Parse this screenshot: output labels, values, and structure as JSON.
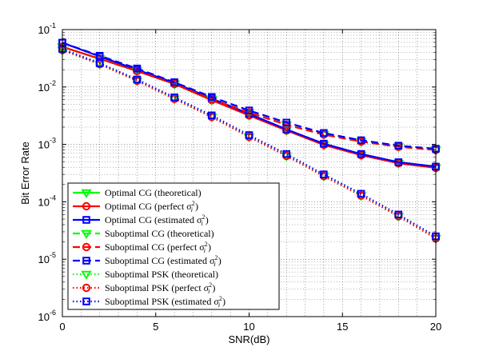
{
  "chart_data": {
    "type": "line",
    "xlabel": "SNR(dB)",
    "ylabel": "Bit Error Rate",
    "xlim": [
      0,
      20
    ],
    "ylim_log10": [
      -6,
      -1
    ],
    "yscale": "log",
    "grid": "major and minor, dotted",
    "legend_placement": "lower-left",
    "xticks": [
      0,
      5,
      10,
      15,
      20
    ],
    "xtick_labels": [
      "0",
      "5",
      "10",
      "15",
      "20"
    ],
    "yticks": [
      {
        "base": "10",
        "exp": "-6",
        "value": 1e-06
      },
      {
        "base": "10",
        "exp": "-5",
        "value": 1e-05
      },
      {
        "base": "10",
        "exp": "-4",
        "value": 0.0001
      },
      {
        "base": "10",
        "exp": "-3",
        "value": 0.001
      },
      {
        "base": "10",
        "exp": "-2",
        "value": 0.01
      },
      {
        "base": "10",
        "exp": "-1",
        "value": 0.1
      }
    ],
    "x": [
      0,
      2,
      4,
      6,
      8,
      10,
      12,
      14,
      16,
      18,
      20
    ],
    "series": [
      {
        "name": "Optimal CG (theoretical)",
        "color": "#00ff00",
        "dash": "solid",
        "marker": "triangle-down",
        "values": [
          0.05,
          0.031,
          0.019,
          0.0113,
          0.0059,
          0.0032,
          0.00175,
          0.00098,
          0.00065,
          0.00047,
          0.00039
        ]
      },
      {
        "name": "Optimal CG (perfect σi²)",
        "color": "#ff0000",
        "dash": "solid",
        "marker": "circle",
        "values": [
          0.05,
          0.031,
          0.019,
          0.0113,
          0.0059,
          0.0032,
          0.00175,
          0.00098,
          0.00065,
          0.00047,
          0.00039
        ]
      },
      {
        "name": "Optimal CG (estimated σi²)",
        "color": "#0000ff",
        "dash": "solid",
        "marker": "square",
        "values": [
          0.059,
          0.034,
          0.02,
          0.0118,
          0.0063,
          0.0034,
          0.00183,
          0.00103,
          0.00068,
          0.00049,
          0.00041
        ]
      },
      {
        "name": "Suboptimal CG (theoretical)",
        "color": "#00ff00",
        "dash": "dashed",
        "marker": "triangle-down",
        "values": [
          0.05,
          0.031,
          0.019,
          0.0113,
          0.0061,
          0.0036,
          0.0022,
          0.00148,
          0.00112,
          0.00091,
          0.0008
        ]
      },
      {
        "name": "Suboptimal CG (perfect σi²)",
        "color": "#ff0000",
        "dash": "dashed",
        "marker": "circle",
        "values": [
          0.05,
          0.031,
          0.019,
          0.0113,
          0.0061,
          0.0036,
          0.0022,
          0.00148,
          0.00112,
          0.00091,
          0.0008
        ]
      },
      {
        "name": "Suboptimal CG (estimated σi²)",
        "color": "#0000ff",
        "dash": "dashed",
        "marker": "square",
        "values": [
          0.059,
          0.035,
          0.021,
          0.0121,
          0.0067,
          0.0039,
          0.0024,
          0.00158,
          0.00118,
          0.00095,
          0.00084
        ]
      },
      {
        "name": "Suboptimal PSK (theoretical)",
        "color": "#00ff00",
        "dash": "dotted",
        "marker": "triangle-down",
        "values": [
          0.044,
          0.025,
          0.0128,
          0.0062,
          0.003,
          0.00135,
          0.00063,
          0.00028,
          0.000128,
          5.6e-05,
          2.3e-05
        ]
      },
      {
        "name": "Suboptimal PSK (perfect σi²)",
        "color": "#ff0000",
        "dash": "dotted",
        "marker": "circle",
        "values": [
          0.044,
          0.025,
          0.0128,
          0.0062,
          0.003,
          0.00135,
          0.00063,
          0.00028,
          0.000128,
          5.6e-05,
          2.3e-05
        ]
      },
      {
        "name": "Suboptimal PSK (estimated σi²)",
        "color": "#0000ff",
        "dash": "dotted",
        "marker": "square",
        "values": [
          0.046,
          0.026,
          0.0135,
          0.0066,
          0.0032,
          0.00145,
          0.00068,
          0.0003,
          0.000138,
          6e-05,
          2.5e-05
        ]
      }
    ]
  }
}
